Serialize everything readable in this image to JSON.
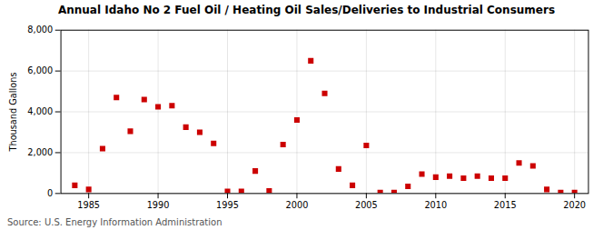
{
  "chart_data": {
    "type": "scatter",
    "title": "Annual Idaho No 2 Fuel Oil / Heating Oil Sales/Deliveries to Industrial Consumers",
    "ylabel": "Thousand Gallons",
    "annotations": [
      "Source: U.S. Energy Information Administration"
    ],
    "x": [
      1984,
      1985,
      1986,
      1987,
      1988,
      1989,
      1990,
      1991,
      1992,
      1993,
      1994,
      1995,
      1996,
      1997,
      1998,
      1999,
      2000,
      2001,
      2002,
      2003,
      2004,
      2005,
      2006,
      2007,
      2008,
      2009,
      2010,
      2011,
      2012,
      2013,
      2014,
      2015,
      2016,
      2017,
      2018,
      2019,
      2020
    ],
    "values": [
      400,
      200,
      2200,
      4700,
      3050,
      4600,
      4250,
      4300,
      3250,
      3000,
      2450,
      100,
      100,
      1100,
      130,
      2400,
      3600,
      6500,
      4900,
      1200,
      400,
      2350,
      50,
      50,
      350,
      950,
      800,
      850,
      750,
      850,
      750,
      750,
      1500,
      1350,
      200,
      50,
      50
    ],
    "color": "#cc0000",
    "marker": "square",
    "xlim": [
      1983,
      2021
    ],
    "xticks": [
      1985,
      1990,
      1995,
      2000,
      2005,
      2010,
      2015,
      2020
    ],
    "ylim": [
      0,
      8000
    ],
    "yticks": [
      0,
      {
        "value": 2000,
        "label": "2,000"
      },
      {
        "value": 4000,
        "label": "4,000"
      },
      {
        "value": 6000,
        "label": "6,000"
      },
      {
        "value": 8000,
        "label": "8,000"
      }
    ],
    "grid": true
  }
}
